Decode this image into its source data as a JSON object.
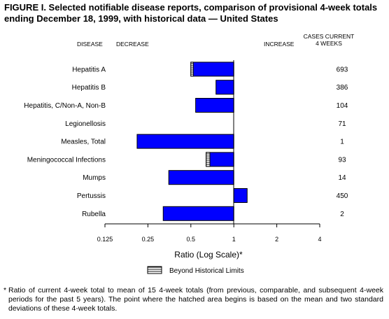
{
  "title": "FIGURE I. Selected notifiable disease reports, comparison of provisional 4-week totals ending December 18, 1999, with historical data — United States",
  "headers": {
    "disease": "DISEASE",
    "decrease": "DECREASE",
    "increase": "INCREASE",
    "cases_line1": "CASES CURRENT",
    "cases_line2": "4 WEEKS"
  },
  "chart_data": {
    "type": "bar",
    "orientation": "horizontal",
    "xscale": "log2",
    "baseline": 1,
    "xlim": [
      0.125,
      4
    ],
    "xticks": [
      0.125,
      0.25,
      0.5,
      1,
      2,
      4
    ],
    "xtick_labels": [
      "0.125",
      "0.25",
      "0.5",
      "1",
      "2",
      "4"
    ],
    "xlabel": "Ratio (Log Scale)*",
    "legend_label": "Beyond Historical Limits",
    "legend_placement": "bottom-center",
    "bar_color": "#0000ff",
    "categories": [
      "Hepatitis A",
      "Hepatitis B",
      "Hepatitis, C/Non-A, Non-B",
      "Legionellosis",
      "Measles, Total",
      "Meningococcal Infections",
      "Mumps",
      "Pertussis",
      "Rubella"
    ],
    "ratios": [
      0.5,
      0.75,
      0.54,
      1.0,
      0.21,
      0.64,
      0.35,
      1.24,
      0.32
    ],
    "beyond_limits_start": [
      0.52,
      null,
      null,
      null,
      null,
      0.68,
      null,
      null,
      null
    ],
    "cases_current_4_weeks": [
      "693",
      "386",
      "104",
      "71",
      "1",
      "93",
      "14",
      "450",
      "2"
    ]
  },
  "footnote": {
    "star": "*",
    "text": "Ratio of current 4-week total to mean of 15 4-week totals (from previous, comparable, and subsequent 4-week periods for the past 5 years). The point where the hatched area begins is based on the mean and two standard deviations of these 4-week totals."
  }
}
